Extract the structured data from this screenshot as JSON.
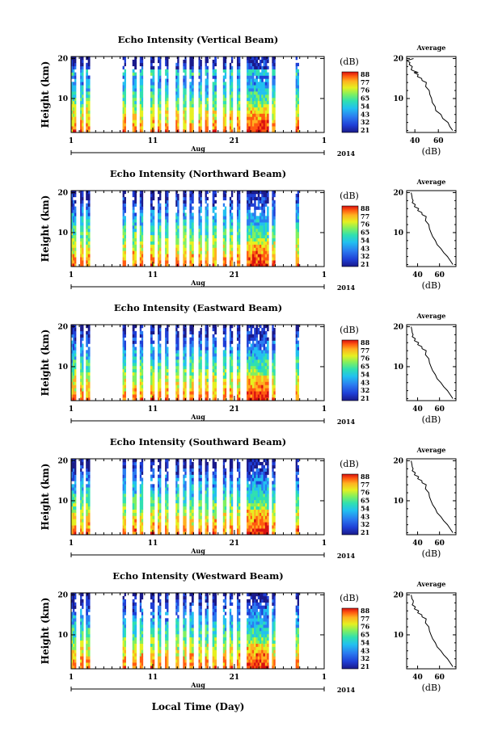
{
  "figure": {
    "xlabel": "Local Time (Day)",
    "x_month": "Aug",
    "x_year": "2014",
    "x_ticks": [
      "1",
      "11",
      "21",
      "1"
    ],
    "y_label": "Height (km)",
    "y_ticks": [
      "20",
      "10"
    ],
    "colorbar_title": "(dB)",
    "colorbar_ticks": [
      "88",
      "77",
      "76",
      "65",
      "54",
      "43",
      "32",
      "21"
    ],
    "avg_title": "Average",
    "avg_unit": "(dB)",
    "colormap": [
      "#1a1a8a",
      "#1f3fd6",
      "#2a7cf0",
      "#22c0f0",
      "#30e0b0",
      "#80f060",
      "#e6f020",
      "#ffb020",
      "#ff5a10",
      "#d81010"
    ]
  },
  "chart_data": [
    {
      "type": "heatmap",
      "title": "Echo Intensity (Vertical Beam)",
      "ylabel": "Height (km)",
      "xlabel": "Local Time (Day)",
      "x_tick_labels": [
        "1",
        "11",
        "21",
        "1"
      ],
      "y_tick_labels": [
        "20",
        "10"
      ],
      "colorbar": {
        "label": "(dB)",
        "ticks": [
          88,
          77,
          76,
          65,
          54,
          43,
          32,
          21
        ]
      },
      "x_range_day": [
        1,
        32
      ],
      "y_range_km": [
        1.5,
        20.5
      ],
      "observation_days": [
        [
          1,
          1.6
        ],
        [
          2.1,
          2.5
        ],
        [
          2.8,
          3.3
        ],
        [
          7.3,
          7.7
        ],
        [
          8.5,
          9.0
        ],
        [
          9.4,
          9.8
        ],
        [
          10.7,
          11.2
        ],
        [
          11.6,
          12.0
        ],
        [
          12.5,
          12.9
        ],
        [
          13.8,
          14.2
        ],
        [
          14.7,
          15.1
        ],
        [
          15.5,
          16.0
        ],
        [
          16.6,
          17.0
        ],
        [
          17.4,
          17.8
        ],
        [
          18.3,
          18.8
        ],
        [
          19.6,
          20.0
        ],
        [
          20.4,
          20.8
        ],
        [
          21.3,
          21.7
        ],
        [
          22.5,
          25.2
        ],
        [
          25.6,
          26.0
        ],
        [
          28.5,
          28.9
        ]
      ],
      "series": [
        {
          "name": "Average",
          "x": [
            72,
            70,
            68,
            64,
            62,
            58,
            57,
            55,
            54,
            53,
            52,
            50,
            49,
            47,
            45,
            43,
            42,
            40,
            39,
            38,
            37,
            36,
            35,
            34,
            42,
            36,
            38
          ],
          "y": [
            2,
            3,
            4,
            5,
            6,
            7,
            8,
            9,
            10,
            11,
            12,
            13,
            14,
            14.5,
            15,
            15.5,
            16,
            16.5,
            17,
            17.5,
            18,
            18.5,
            19,
            19.5,
            16.5,
            17.2,
            20
          ]
        }
      ],
      "avg_xticks": [
        "40",
        "60"
      ],
      "avg_xlim": [
        33,
        75
      ]
    },
    {
      "type": "heatmap",
      "title": "Echo Intensity (Northward Beam)",
      "ylabel": "Height (km)",
      "x_tick_labels": [
        "1",
        "11",
        "21",
        "1"
      ],
      "y_tick_labels": [
        "20",
        "10"
      ],
      "colorbar": {
        "label": "(dB)",
        "ticks": [
          88,
          77,
          76,
          65,
          54,
          43,
          32,
          21
        ]
      },
      "x_range_day": [
        1,
        32
      ],
      "y_range_km": [
        1.5,
        20.5
      ],
      "observation_days": [
        [
          1,
          1.6
        ],
        [
          2.1,
          2.5
        ],
        [
          2.8,
          3.3
        ],
        [
          7.3,
          7.7
        ],
        [
          8.5,
          9.0
        ],
        [
          9.4,
          9.8
        ],
        [
          10.7,
          11.2
        ],
        [
          11.6,
          12.0
        ],
        [
          12.5,
          12.9
        ],
        [
          13.8,
          14.2
        ],
        [
          14.7,
          15.1
        ],
        [
          15.5,
          16.0
        ],
        [
          16.6,
          17.0
        ],
        [
          17.4,
          17.8
        ],
        [
          18.3,
          18.8
        ],
        [
          19.6,
          20.0
        ],
        [
          20.4,
          20.8
        ],
        [
          21.3,
          21.7
        ],
        [
          22.5,
          25.2
        ],
        [
          25.6,
          26.0
        ],
        [
          28.5,
          28.9
        ]
      ],
      "series": [
        {
          "name": "Average",
          "x": [
            72,
            70,
            67,
            64,
            61,
            58,
            56,
            54,
            52,
            51,
            50,
            48,
            47,
            45,
            43,
            41,
            40,
            38,
            37,
            36,
            35,
            36,
            34,
            35
          ],
          "y": [
            2,
            3,
            4,
            5,
            6,
            7,
            8,
            9,
            10,
            11,
            12,
            13,
            14,
            14.5,
            15,
            15.5,
            16,
            16.5,
            17,
            17.5,
            18,
            18.5,
            19,
            20
          ]
        }
      ],
      "avg_xticks": [
        "40",
        "60"
      ],
      "avg_xlim": [
        30,
        75
      ]
    },
    {
      "type": "heatmap",
      "title": "Echo Intensity (Eastward Beam)",
      "ylabel": "Height (km)",
      "x_tick_labels": [
        "1",
        "11",
        "21",
        "1"
      ],
      "y_tick_labels": [
        "20",
        "10"
      ],
      "colorbar": {
        "label": "(dB)",
        "ticks": [
          88,
          77,
          76,
          65,
          54,
          43,
          32,
          21
        ]
      },
      "x_range_day": [
        1,
        32
      ],
      "y_range_km": [
        1.5,
        20.5
      ],
      "observation_days": [
        [
          1,
          1.6
        ],
        [
          2.1,
          2.5
        ],
        [
          2.8,
          3.3
        ],
        [
          7.3,
          7.7
        ],
        [
          8.5,
          9.0
        ],
        [
          9.4,
          9.8
        ],
        [
          10.7,
          11.2
        ],
        [
          11.6,
          12.0
        ],
        [
          12.5,
          12.9
        ],
        [
          13.8,
          14.2
        ],
        [
          14.7,
          15.1
        ],
        [
          15.5,
          16.0
        ],
        [
          16.6,
          17.0
        ],
        [
          17.4,
          17.8
        ],
        [
          18.3,
          18.8
        ],
        [
          19.6,
          20.0
        ],
        [
          20.4,
          20.8
        ],
        [
          21.3,
          21.7
        ],
        [
          22.5,
          25.2
        ],
        [
          25.6,
          26.0
        ],
        [
          28.5,
          28.9
        ]
      ],
      "series": [
        {
          "name": "Average",
          "x": [
            72,
            70,
            67,
            64,
            61,
            58,
            56,
            54,
            52,
            51,
            50,
            48,
            47,
            45,
            43,
            41,
            40,
            38,
            37,
            36,
            35,
            36,
            34,
            35
          ],
          "y": [
            2,
            3,
            4,
            5,
            6,
            7,
            8,
            9,
            10,
            11,
            12,
            13,
            14,
            14.5,
            15,
            15.5,
            16,
            16.5,
            17,
            17.5,
            18,
            18.5,
            19,
            20
          ]
        }
      ],
      "avg_xticks": [
        "40",
        "60"
      ],
      "avg_xlim": [
        30,
        75
      ]
    },
    {
      "type": "heatmap",
      "title": "Echo Intensity (Southward Beam)",
      "ylabel": "Height (km)",
      "x_tick_labels": [
        "1",
        "11",
        "21",
        "1"
      ],
      "y_tick_labels": [
        "20",
        "10"
      ],
      "colorbar": {
        "label": "(dB)",
        "ticks": [
          88,
          77,
          76,
          65,
          54,
          43,
          32,
          21
        ]
      },
      "x_range_day": [
        1,
        32
      ],
      "y_range_km": [
        1.5,
        20.5
      ],
      "observation_days": [
        [
          1,
          1.6
        ],
        [
          2.1,
          2.5
        ],
        [
          2.8,
          3.3
        ],
        [
          7.3,
          7.7
        ],
        [
          8.5,
          9.0
        ],
        [
          9.4,
          9.8
        ],
        [
          10.7,
          11.2
        ],
        [
          11.6,
          12.0
        ],
        [
          12.5,
          12.9
        ],
        [
          13.8,
          14.2
        ],
        [
          14.7,
          15.1
        ],
        [
          15.5,
          16.0
        ],
        [
          16.6,
          17.0
        ],
        [
          17.4,
          17.8
        ],
        [
          18.3,
          18.8
        ],
        [
          19.6,
          20.0
        ],
        [
          20.4,
          20.8
        ],
        [
          21.3,
          21.7
        ],
        [
          22.5,
          25.2
        ],
        [
          25.6,
          26.0
        ],
        [
          28.5,
          28.9
        ]
      ],
      "series": [
        {
          "name": "Average",
          "x": [
            72,
            70,
            67,
            64,
            61,
            58,
            56,
            54,
            52,
            51,
            50,
            48,
            47,
            45,
            43,
            41,
            40,
            38,
            37,
            36,
            35,
            36,
            34,
            35
          ],
          "y": [
            2,
            3,
            4,
            5,
            6,
            7,
            8,
            9,
            10,
            11,
            12,
            13,
            14,
            14.5,
            15,
            15.5,
            16,
            16.5,
            17,
            17.5,
            18,
            18.5,
            19,
            20
          ]
        }
      ],
      "avg_xticks": [
        "40",
        "60"
      ],
      "avg_xlim": [
        30,
        75
      ]
    },
    {
      "type": "heatmap",
      "title": "Echo Intensity (Westward Beam)",
      "ylabel": "Height (km)",
      "x_tick_labels": [
        "1",
        "11",
        "21",
        "1"
      ],
      "y_tick_labels": [
        "20",
        "10"
      ],
      "colorbar": {
        "label": "(dB)",
        "ticks": [
          88,
          77,
          76,
          65,
          54,
          43,
          32,
          21
        ]
      },
      "x_range_day": [
        1,
        32
      ],
      "y_range_km": [
        1.5,
        20.5
      ],
      "observation_days": [
        [
          1,
          1.6
        ],
        [
          2.1,
          2.5
        ],
        [
          2.8,
          3.3
        ],
        [
          7.3,
          7.7
        ],
        [
          8.5,
          9.0
        ],
        [
          9.4,
          9.8
        ],
        [
          10.7,
          11.2
        ],
        [
          11.6,
          12.0
        ],
        [
          12.5,
          12.9
        ],
        [
          13.8,
          14.2
        ],
        [
          14.7,
          15.1
        ],
        [
          15.5,
          16.0
        ],
        [
          16.6,
          17.0
        ],
        [
          17.4,
          17.8
        ],
        [
          18.3,
          18.8
        ],
        [
          19.6,
          20.0
        ],
        [
          20.4,
          20.8
        ],
        [
          21.3,
          21.7
        ],
        [
          22.5,
          25.2
        ],
        [
          25.6,
          26.0
        ],
        [
          28.5,
          28.9
        ]
      ],
      "series": [
        {
          "name": "Average",
          "x": [
            72,
            70,
            67,
            64,
            61,
            58,
            56,
            54,
            52,
            51,
            50,
            48,
            47,
            45,
            43,
            41,
            40,
            38,
            37,
            36,
            35,
            37,
            34,
            35
          ],
          "y": [
            2,
            3,
            4,
            5,
            6,
            7,
            8,
            9,
            10,
            11,
            12,
            13,
            14,
            14.5,
            15,
            15.5,
            16,
            16.5,
            17,
            17.5,
            18,
            18.5,
            19,
            20
          ]
        }
      ],
      "avg_xticks": [
        "40",
        "60"
      ],
      "avg_xlim": [
        30,
        75
      ]
    }
  ]
}
